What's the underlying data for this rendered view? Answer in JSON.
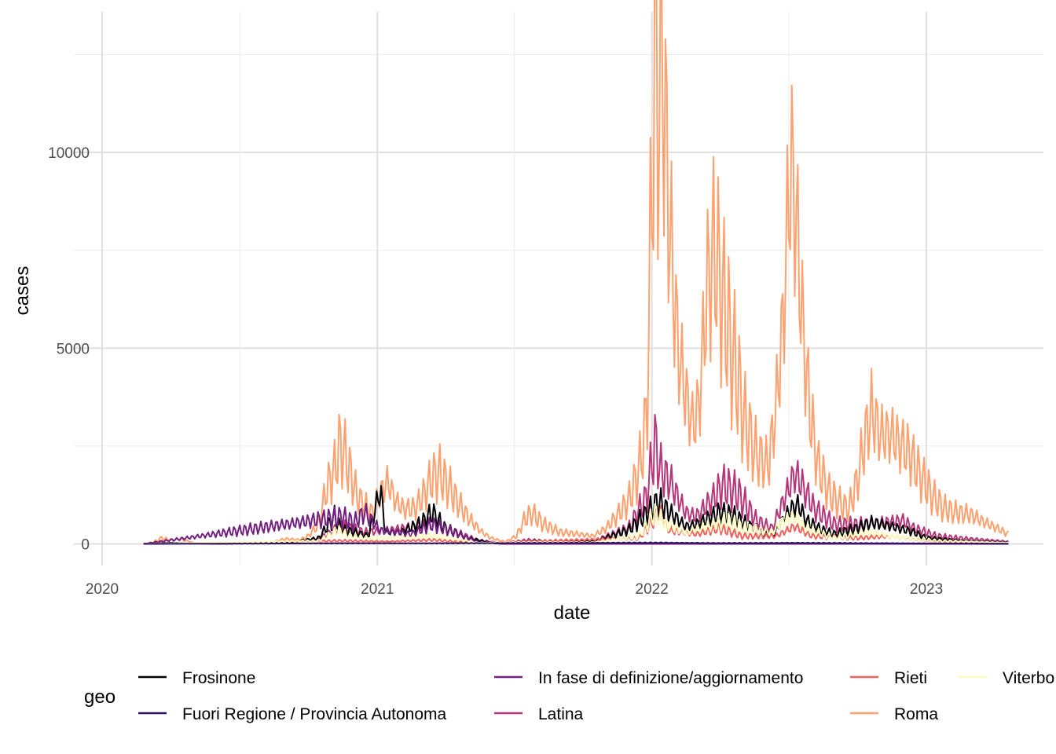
{
  "chart_data": {
    "type": "line",
    "xlabel": "date",
    "ylabel": "cases",
    "x_ticks": [
      "2020",
      "2021",
      "2022",
      "2023"
    ],
    "y_ticks": [
      0,
      5000,
      10000
    ],
    "xlim": [
      "2020-01-01",
      "2023-05-31"
    ],
    "ylim": [
      -500,
      13500
    ],
    "grid": true,
    "legend": {
      "title": "geo",
      "placement": "bottom",
      "columns": [
        [
          "Frosinone",
          "Fuori Regione / Provincia Autonoma"
        ],
        [
          "In fase di definizione/aggiornamento",
          "Latina"
        ],
        [
          "Rieti",
          "Roma"
        ],
        [
          "Viterbo"
        ]
      ]
    },
    "series": [
      {
        "name": "Frosinone",
        "color": "#000004",
        "points": [
          [
            "2020-02-25",
            0
          ],
          [
            "2020-04-01",
            25
          ],
          [
            "2020-06-01",
            5
          ],
          [
            "2020-09-01",
            20
          ],
          [
            "2020-10-15",
            150
          ],
          [
            "2020-11-05",
            700
          ],
          [
            "2020-11-15",
            350
          ],
          [
            "2020-12-01",
            300
          ],
          [
            "2020-12-20",
            200
          ],
          [
            "2021-01-05",
            1400
          ],
          [
            "2021-01-12",
            300
          ],
          [
            "2021-02-01",
            300
          ],
          [
            "2021-03-01",
            550
          ],
          [
            "2021-03-15",
            800
          ],
          [
            "2021-04-01",
            400
          ],
          [
            "2021-05-01",
            150
          ],
          [
            "2021-06-01",
            30
          ],
          [
            "2021-07-15",
            40
          ],
          [
            "2021-08-01",
            80
          ],
          [
            "2021-09-01",
            40
          ],
          [
            "2021-10-15",
            60
          ],
          [
            "2021-12-01",
            350
          ],
          [
            "2022-01-01",
            900
          ],
          [
            "2022-01-10",
            1100
          ],
          [
            "2022-01-25",
            800
          ],
          [
            "2022-02-15",
            450
          ],
          [
            "2022-03-01",
            500
          ],
          [
            "2022-04-01",
            800
          ],
          [
            "2022-04-20",
            700
          ],
          [
            "2022-05-15",
            400
          ],
          [
            "2022-06-10",
            200
          ],
          [
            "2022-06-20",
            500
          ],
          [
            "2022-07-05",
            900
          ],
          [
            "2022-07-15",
            1000
          ],
          [
            "2022-07-25",
            600
          ],
          [
            "2022-08-15",
            350
          ],
          [
            "2022-09-01",
            250
          ],
          [
            "2022-10-01",
            400
          ],
          [
            "2022-10-20",
            550
          ],
          [
            "2022-11-15",
            450
          ],
          [
            "2022-12-15",
            300
          ],
          [
            "2023-01-01",
            150
          ],
          [
            "2023-02-15",
            80
          ],
          [
            "2023-03-15",
            60
          ],
          [
            "2023-04-20",
            40
          ]
        ]
      },
      {
        "name": "Fuori Regione / Provincia Autonoma",
        "color": "#2C115F",
        "points": [
          [
            "2020-02-25",
            0
          ],
          [
            "2020-11-15",
            15
          ],
          [
            "2021-03-15",
            15
          ],
          [
            "2022-01-10",
            30
          ],
          [
            "2022-04-01",
            20
          ],
          [
            "2022-07-15",
            25
          ],
          [
            "2023-04-20",
            5
          ]
        ]
      },
      {
        "name": "In fase di definizione/aggiornamento",
        "color": "#721F81",
        "points": [
          [
            "2020-02-25",
            0
          ],
          [
            "2020-11-15",
            700
          ],
          [
            "2020-12-01",
            550
          ],
          [
            "2020-12-15",
            800
          ],
          [
            "2021-01-05",
            350
          ],
          [
            "2021-02-15",
            250
          ],
          [
            "2021-03-15",
            500
          ],
          [
            "2021-04-05",
            350
          ],
          [
            "2021-05-15",
            50
          ],
          [
            "2021-06-15",
            0
          ],
          [
            "2023-04-20",
            0
          ]
        ]
      },
      {
        "name": "Latina",
        "color": "#B63679",
        "points": [
          [
            "2020-02-25",
            0
          ],
          [
            "2020-04-01",
            15
          ],
          [
            "2020-06-01",
            5
          ],
          [
            "2020-09-01",
            20
          ],
          [
            "2020-10-15",
            120
          ],
          [
            "2020-11-15",
            450
          ],
          [
            "2020-12-15",
            300
          ],
          [
            "2021-01-15",
            350
          ],
          [
            "2021-03-15",
            500
          ],
          [
            "2021-04-15",
            300
          ],
          [
            "2021-05-15",
            100
          ],
          [
            "2021-06-15",
            20
          ],
          [
            "2021-07-20",
            100
          ],
          [
            "2021-09-01",
            50
          ],
          [
            "2021-10-15",
            80
          ],
          [
            "2021-12-01",
            400
          ],
          [
            "2021-12-25",
            1200
          ],
          [
            "2022-01-05",
            2600
          ],
          [
            "2022-01-12",
            1900
          ],
          [
            "2022-01-25",
            1600
          ],
          [
            "2022-02-15",
            800
          ],
          [
            "2022-03-01",
            700
          ],
          [
            "2022-03-25",
            1200
          ],
          [
            "2022-04-05",
            1500
          ],
          [
            "2022-04-25",
            1300
          ],
          [
            "2022-05-20",
            600
          ],
          [
            "2022-06-10",
            400
          ],
          [
            "2022-06-25",
            1100
          ],
          [
            "2022-07-10",
            1800
          ],
          [
            "2022-07-20",
            1500
          ],
          [
            "2022-08-05",
            900
          ],
          [
            "2022-09-01",
            500
          ],
          [
            "2022-10-01",
            500
          ],
          [
            "2022-11-01",
            550
          ],
          [
            "2022-12-01",
            600
          ],
          [
            "2022-12-15",
            400
          ],
          [
            "2023-01-15",
            200
          ],
          [
            "2023-02-15",
            150
          ],
          [
            "2023-04-20",
            60
          ]
        ]
      },
      {
        "name": "Rieti",
        "color": "#F1605D",
        "points": [
          [
            "2020-02-25",
            0
          ],
          [
            "2020-11-15",
            80
          ],
          [
            "2021-01-15",
            60
          ],
          [
            "2021-03-15",
            100
          ],
          [
            "2021-05-15",
            20
          ],
          [
            "2021-12-15",
            150
          ],
          [
            "2022-01-10",
            800
          ],
          [
            "2022-01-25",
            350
          ],
          [
            "2022-03-01",
            250
          ],
          [
            "2022-04-01",
            400
          ],
          [
            "2022-05-01",
            200
          ],
          [
            "2022-06-15",
            200
          ],
          [
            "2022-07-10",
            450
          ],
          [
            "2022-08-01",
            200
          ],
          [
            "2022-10-01",
            150
          ],
          [
            "2022-11-15",
            200
          ],
          [
            "2023-01-15",
            60
          ],
          [
            "2023-04-20",
            20
          ]
        ]
      },
      {
        "name": "Roma",
        "color": "#FEA16E",
        "points": [
          [
            "2020-02-25",
            0
          ],
          [
            "2020-03-10",
            50
          ],
          [
            "2020-03-20",
            150
          ],
          [
            "2020-04-01",
            100
          ],
          [
            "2020-04-15",
            120
          ],
          [
            "2020-05-01",
            30
          ],
          [
            "2020-06-01",
            10
          ],
          [
            "2020-07-15",
            15
          ],
          [
            "2020-08-15",
            50
          ],
          [
            "2020-09-01",
            130
          ],
          [
            "2020-09-20",
            100
          ],
          [
            "2020-10-01",
            200
          ],
          [
            "2020-10-15",
            500
          ],
          [
            "2020-10-25",
            1400
          ],
          [
            "2020-11-05",
            1900
          ],
          [
            "2020-11-12",
            2550
          ],
          [
            "2020-11-20",
            2200
          ],
          [
            "2020-11-28",
            1700
          ],
          [
            "2020-12-05",
            1200
          ],
          [
            "2020-12-15",
            1000
          ],
          [
            "2020-12-25",
            800
          ],
          [
            "2021-01-05",
            1300
          ],
          [
            "2021-01-15",
            1600
          ],
          [
            "2021-01-25",
            1100
          ],
          [
            "2021-02-05",
            900
          ],
          [
            "2021-02-20",
            900
          ],
          [
            "2021-03-05",
            1300
          ],
          [
            "2021-03-15",
            1700
          ],
          [
            "2021-03-25",
            1800
          ],
          [
            "2021-04-05",
            1500
          ],
          [
            "2021-04-20",
            1000
          ],
          [
            "2021-05-05",
            600
          ],
          [
            "2021-05-20",
            300
          ],
          [
            "2021-06-01",
            150
          ],
          [
            "2021-06-20",
            50
          ],
          [
            "2021-07-05",
            200
          ],
          [
            "2021-07-15",
            600
          ],
          [
            "2021-07-25",
            800
          ],
          [
            "2021-08-10",
            500
          ],
          [
            "2021-09-01",
            300
          ],
          [
            "2021-09-25",
            250
          ],
          [
            "2021-10-15",
            200
          ],
          [
            "2021-11-01",
            400
          ],
          [
            "2021-11-15",
            700
          ],
          [
            "2021-12-01",
            1100
          ],
          [
            "2021-12-15",
            1900
          ],
          [
            "2021-12-25",
            3200
          ],
          [
            "2022-01-01",
            9000
          ],
          [
            "2022-01-04",
            12900
          ],
          [
            "2022-01-10",
            11000
          ],
          [
            "2022-01-15",
            12800
          ],
          [
            "2022-01-20",
            10000
          ],
          [
            "2022-01-28",
            7000
          ],
          [
            "2022-02-05",
            5000
          ],
          [
            "2022-02-15",
            3800
          ],
          [
            "2022-02-25",
            3000
          ],
          [
            "2022-03-05",
            3600
          ],
          [
            "2022-03-15",
            6500
          ],
          [
            "2022-03-25",
            7600
          ],
          [
            "2022-04-05",
            6300
          ],
          [
            "2022-04-15",
            5200
          ],
          [
            "2022-04-25",
            4200
          ],
          [
            "2022-05-05",
            3100
          ],
          [
            "2022-05-20",
            2300
          ],
          [
            "2022-06-05",
            2000
          ],
          [
            "2022-06-15",
            3500
          ],
          [
            "2022-06-25",
            5800
          ],
          [
            "2022-07-01",
            8500
          ],
          [
            "2022-07-05",
            9800
          ],
          [
            "2022-07-12",
            8300
          ],
          [
            "2022-07-20",
            5700
          ],
          [
            "2022-07-30",
            3400
          ],
          [
            "2022-08-10",
            2000
          ],
          [
            "2022-08-25",
            1300
          ],
          [
            "2022-09-10",
            1000
          ],
          [
            "2022-09-20",
            900
          ],
          [
            "2022-10-01",
            1600
          ],
          [
            "2022-10-10",
            2600
          ],
          [
            "2022-10-20",
            3400
          ],
          [
            "2022-11-01",
            2800
          ],
          [
            "2022-11-15",
            2800
          ],
          [
            "2022-11-25",
            2600
          ],
          [
            "2022-12-10",
            2300
          ],
          [
            "2022-12-20",
            1900
          ],
          [
            "2023-01-01",
            1500
          ],
          [
            "2023-01-10",
            1200
          ],
          [
            "2023-01-25",
            900
          ],
          [
            "2023-02-10",
            800
          ],
          [
            "2023-03-01",
            750
          ],
          [
            "2023-03-20",
            550
          ],
          [
            "2023-04-05",
            400
          ],
          [
            "2023-04-20",
            250
          ]
        ]
      },
      {
        "name": "Viterbo",
        "color": "#FCFDBF",
        "points": [
          [
            "2020-02-25",
            0
          ],
          [
            "2020-10-15",
            80
          ],
          [
            "2020-11-10",
            350
          ],
          [
            "2020-11-25",
            200
          ],
          [
            "2020-12-20",
            150
          ],
          [
            "2021-01-15",
            150
          ],
          [
            "2021-03-15",
            200
          ],
          [
            "2021-04-15",
            120
          ],
          [
            "2021-05-15",
            30
          ],
          [
            "2021-07-20",
            40
          ],
          [
            "2021-10-15",
            40
          ],
          [
            "2021-12-15",
            200
          ],
          [
            "2022-01-05",
            800
          ],
          [
            "2022-01-20",
            500
          ],
          [
            "2022-02-15",
            300
          ],
          [
            "2022-03-25",
            500
          ],
          [
            "2022-04-10",
            600
          ],
          [
            "2022-05-05",
            400
          ],
          [
            "2022-06-10",
            300
          ],
          [
            "2022-06-25",
            600
          ],
          [
            "2022-07-10",
            700
          ],
          [
            "2022-07-25",
            400
          ],
          [
            "2022-09-01",
            150
          ],
          [
            "2022-10-15",
            300
          ],
          [
            "2022-11-15",
            200
          ],
          [
            "2023-01-15",
            80
          ],
          [
            "2023-04-20",
            30
          ]
        ]
      }
    ]
  }
}
